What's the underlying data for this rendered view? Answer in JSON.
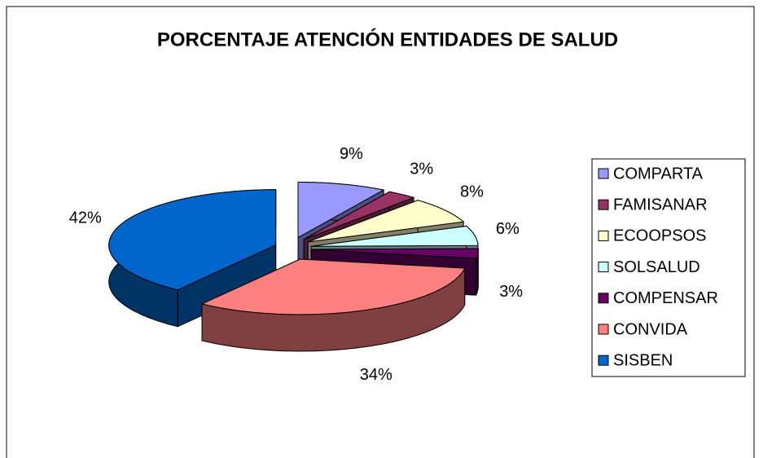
{
  "chart_data": {
    "type": "pie3d",
    "title": "PORCENTAJE ATENCIÓN ENTIDADES DE SALUD",
    "categories": [
      "COMPARTA",
      "FAMISANAR",
      "ECOOPSOS",
      "SOLSALUD",
      "COMPENSAR",
      "CONVIDA",
      "SISBEN"
    ],
    "values": [
      9,
      3,
      8,
      6,
      3,
      34,
      42
    ],
    "value_labels": [
      "9%",
      "3%",
      "8%",
      "6%",
      "3%",
      "34%",
      "42%"
    ],
    "colors": [
      "#9999ff",
      "#993366",
      "#ffffcc",
      "#ccffff",
      "#660066",
      "#ff8080",
      "#0066cc"
    ],
    "legend": "right"
  }
}
